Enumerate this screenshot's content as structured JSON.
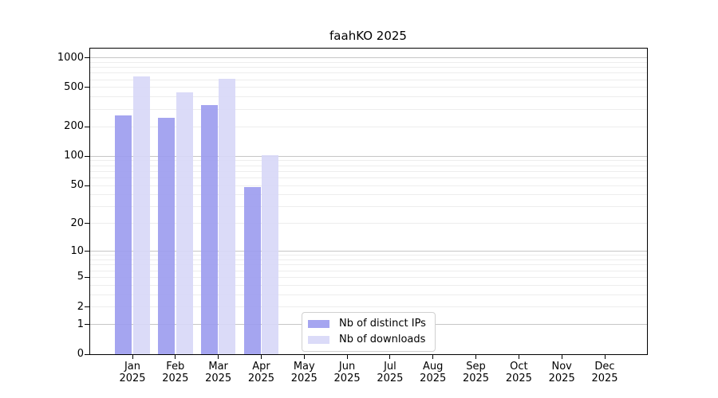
{
  "chart_data": {
    "type": "bar",
    "title": "faahKO 2025",
    "months": [
      "Jan",
      "Feb",
      "Mar",
      "Apr",
      "May",
      "Jun",
      "Jul",
      "Aug",
      "Sep",
      "Oct",
      "Nov",
      "Dec"
    ],
    "year": "2025",
    "categories": [
      "Jan 2025",
      "Feb 2025",
      "Mar 2025",
      "Apr 2025",
      "May 2025",
      "Jun 2025",
      "Jul 2025",
      "Aug 2025",
      "Sep 2025",
      "Oct 2025",
      "Nov 2025",
      "Dec 2025"
    ],
    "series": [
      {
        "name": "Nb of distinct IPs",
        "color": "#9b9bee",
        "values": [
          260,
          247,
          330,
          48,
          0,
          0,
          0,
          0,
          0,
          0,
          0,
          0
        ]
      },
      {
        "name": "Nb of downloads",
        "color": "#d7d7f7",
        "values": [
          650,
          446,
          615,
          103,
          0,
          0,
          0,
          0,
          0,
          0,
          0,
          0
        ]
      }
    ],
    "y_scale": "log10(value+1)",
    "y_ticks": [
      0,
      1,
      2,
      5,
      10,
      20,
      50,
      100,
      200,
      500,
      1000
    ],
    "y_axis_max": 1240,
    "grid": {
      "major": [
        1,
        10,
        100,
        1000
      ],
      "minor": [
        2,
        3,
        4,
        5,
        6,
        7,
        8,
        9,
        20,
        30,
        40,
        50,
        60,
        70,
        80,
        90,
        200,
        300,
        400,
        500,
        600,
        700,
        800,
        900
      ]
    },
    "grid_on": true,
    "legend_position": "inside-lower-center",
    "colors": {
      "grid_major": "#c6c6c6",
      "grid_minor": "#ededed",
      "axis_frame": "#000000",
      "legend_border": "#d0d0d0",
      "background": "#ffffff",
      "text": "#000000"
    }
  }
}
